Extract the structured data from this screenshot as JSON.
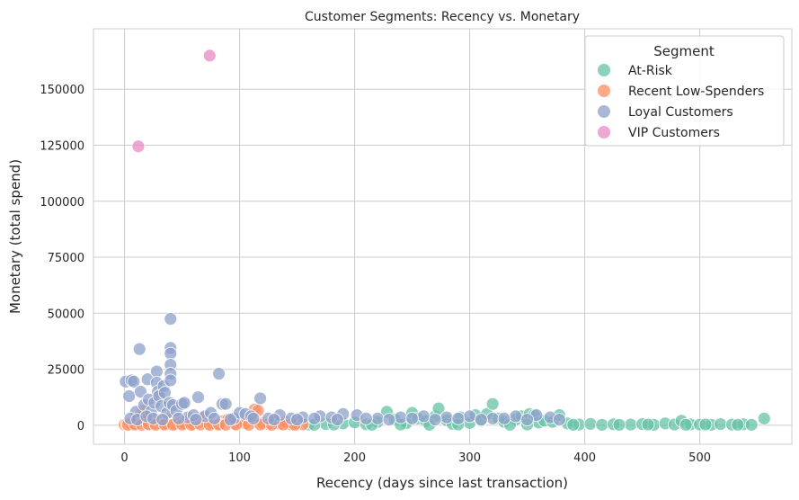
{
  "chart_data": {
    "type": "scatter",
    "title": "Customer Segments: Recency vs. Monetary",
    "xlabel": "Recency (days since last transaction)",
    "ylabel": "Monetary (total spend)",
    "xlim": [
      -27,
      580
    ],
    "ylim": [
      -8500,
      177000
    ],
    "xticks": [
      0,
      100,
      200,
      300,
      400,
      500
    ],
    "yticks": [
      0,
      25000,
      50000,
      75000,
      100000,
      125000,
      150000
    ],
    "grid": true,
    "legend": {
      "title": "Segment",
      "placement": "top-right",
      "entries": [
        "At-Risk",
        "Recent Low-Spenders",
        "Loyal Customers",
        "VIP Customers"
      ]
    },
    "series": [
      {
        "name": "At-Risk",
        "color": "#66c2a5",
        "points": [
          [
            160,
            300
          ],
          [
            175,
            500
          ],
          [
            190,
            800
          ],
          [
            200,
            1200
          ],
          [
            210,
            400
          ],
          [
            220,
            1500
          ],
          [
            228,
            6000
          ],
          [
            235,
            2500
          ],
          [
            245,
            900
          ],
          [
            250,
            5500
          ],
          [
            255,
            3000
          ],
          [
            262,
            1800
          ],
          [
            270,
            4000
          ],
          [
            273,
            7500
          ],
          [
            280,
            2200
          ],
          [
            285,
            600
          ],
          [
            292,
            3500
          ],
          [
            300,
            1000
          ],
          [
            305,
            4500
          ],
          [
            310,
            2000
          ],
          [
            315,
            5000
          ],
          [
            320,
            9500
          ],
          [
            325,
            3000
          ],
          [
            330,
            1500
          ],
          [
            340,
            2500
          ],
          [
            345,
            4000
          ],
          [
            352,
            5000
          ],
          [
            356,
            4500
          ],
          [
            360,
            1200
          ],
          [
            365,
            2000
          ],
          [
            372,
            1500
          ],
          [
            378,
            4500
          ],
          [
            385,
            800
          ],
          [
            395,
            300
          ],
          [
            405,
            600
          ],
          [
            415,
            200
          ],
          [
            425,
            400
          ],
          [
            440,
            300
          ],
          [
            450,
            500
          ],
          [
            460,
            200
          ],
          [
            470,
            800
          ],
          [
            478,
            300
          ],
          [
            484,
            2000
          ],
          [
            492,
            400
          ],
          [
            500,
            300
          ],
          [
            510,
            200
          ],
          [
            518,
            500
          ],
          [
            528,
            300
          ],
          [
            538,
            400
          ],
          [
            545,
            200
          ],
          [
            556,
            3000
          ],
          [
            165,
            200
          ],
          [
            182,
            300
          ],
          [
            215,
            200
          ],
          [
            240,
            300
          ],
          [
            265,
            200
          ],
          [
            290,
            300
          ],
          [
            335,
            200
          ],
          [
            350,
            300
          ],
          [
            390,
            200
          ],
          [
            430,
            200
          ],
          [
            455,
            300
          ],
          [
            488,
            200
          ],
          [
            505,
            300
          ],
          [
            533,
            200
          ]
        ]
      },
      {
        "name": "Recent Low-Spenders",
        "color": "#fc8d62",
        "points": [
          [
            0,
            300
          ],
          [
            2,
            500
          ],
          [
            4,
            900
          ],
          [
            6,
            300
          ],
          [
            8,
            1500
          ],
          [
            10,
            600
          ],
          [
            12,
            2500
          ],
          [
            14,
            4500
          ],
          [
            16,
            6500
          ],
          [
            18,
            1200
          ],
          [
            20,
            3000
          ],
          [
            22,
            400
          ],
          [
            25,
            1800
          ],
          [
            28,
            700
          ],
          [
            30,
            2200
          ],
          [
            33,
            300
          ],
          [
            36,
            1000
          ],
          [
            40,
            2800
          ],
          [
            44,
            500
          ],
          [
            48,
            1500
          ],
          [
            52,
            700
          ],
          [
            56,
            2000
          ],
          [
            60,
            400
          ],
          [
            64,
            1200
          ],
          [
            68,
            3500
          ],
          [
            72,
            600
          ],
          [
            76,
            1000
          ],
          [
            80,
            300
          ],
          [
            85,
            1800
          ],
          [
            90,
            2500
          ],
          [
            95,
            500
          ],
          [
            100,
            1500
          ],
          [
            105,
            800
          ],
          [
            110,
            3000
          ],
          [
            113,
            7000
          ],
          [
            116,
            6500
          ],
          [
            120,
            1000
          ],
          [
            125,
            500
          ],
          [
            130,
            2000
          ],
          [
            135,
            600
          ],
          [
            140,
            1500
          ],
          [
            145,
            300
          ],
          [
            150,
            800
          ],
          [
            155,
            400
          ],
          [
            3,
            200
          ],
          [
            9,
            300
          ],
          [
            15,
            200
          ],
          [
            21,
            400
          ],
          [
            27,
            200
          ],
          [
            35,
            300
          ],
          [
            42,
            200
          ],
          [
            50,
            300
          ],
          [
            58,
            200
          ],
          [
            66,
            300
          ],
          [
            74,
            200
          ],
          [
            82,
            300
          ],
          [
            88,
            200
          ],
          [
            97,
            300
          ],
          [
            108,
            200
          ],
          [
            118,
            300
          ],
          [
            128,
            200
          ],
          [
            138,
            300
          ],
          [
            148,
            200
          ]
        ]
      },
      {
        "name": "Loyal Customers",
        "color": "#8da0cb",
        "points": [
          [
            1,
            19500
          ],
          [
            4,
            13000
          ],
          [
            6,
            20000
          ],
          [
            8,
            19500
          ],
          [
            10,
            6000
          ],
          [
            13,
            34000
          ],
          [
            14,
            15000
          ],
          [
            17,
            9000
          ],
          [
            20,
            20500
          ],
          [
            21,
            11500
          ],
          [
            23,
            6000
          ],
          [
            26,
            10000
          ],
          [
            28,
            24000
          ],
          [
            28,
            19000
          ],
          [
            29,
            15000
          ],
          [
            30,
            13000
          ],
          [
            32,
            8500
          ],
          [
            34,
            17500
          ],
          [
            35,
            14500
          ],
          [
            37,
            5500
          ],
          [
            39,
            10000
          ],
          [
            40,
            47500
          ],
          [
            40,
            34500
          ],
          [
            40,
            32000
          ],
          [
            40,
            27000
          ],
          [
            40,
            23000
          ],
          [
            40,
            20000
          ],
          [
            42,
            9000
          ],
          [
            45,
            6500
          ],
          [
            50,
            9500
          ],
          [
            52,
            10000
          ],
          [
            55,
            3500
          ],
          [
            60,
            4500
          ],
          [
            64,
            12500
          ],
          [
            70,
            4000
          ],
          [
            75,
            5500
          ],
          [
            82,
            23000
          ],
          [
            85,
            9500
          ],
          [
            88,
            9500
          ],
          [
            95,
            3000
          ],
          [
            100,
            5500
          ],
          [
            105,
            5000
          ],
          [
            110,
            4000
          ],
          [
            118,
            12000
          ],
          [
            125,
            3000
          ],
          [
            135,
            4500
          ],
          [
            145,
            3000
          ],
          [
            155,
            3500
          ],
          [
            170,
            4000
          ],
          [
            180,
            3500
          ],
          [
            190,
            5000
          ],
          [
            202,
            4500
          ],
          [
            220,
            3000
          ],
          [
            240,
            3500
          ],
          [
            260,
            4000
          ],
          [
            280,
            3500
          ],
          [
            300,
            4000
          ],
          [
            320,
            3000
          ],
          [
            340,
            4000
          ],
          [
            358,
            4500
          ],
          [
            370,
            3500
          ],
          [
            378,
            2500
          ],
          [
            5,
            3000
          ],
          [
            11,
            2500
          ],
          [
            19,
            4000
          ],
          [
            25,
            3000
          ],
          [
            33,
            2500
          ],
          [
            47,
            3000
          ],
          [
            62,
            2500
          ],
          [
            78,
            3000
          ],
          [
            92,
            2500
          ],
          [
            112,
            3000
          ],
          [
            130,
            2500
          ],
          [
            150,
            2500
          ],
          [
            165,
            3000
          ],
          [
            185,
            2500
          ],
          [
            210,
            3000
          ],
          [
            230,
            2500
          ],
          [
            250,
            3000
          ],
          [
            270,
            2500
          ],
          [
            290,
            3000
          ],
          [
            310,
            2500
          ],
          [
            330,
            3000
          ],
          [
            350,
            2500
          ]
        ]
      },
      {
        "name": "VIP Customers",
        "color": "#e78ac3",
        "points": [
          [
            12,
            124500
          ],
          [
            74,
            165000
          ]
        ]
      }
    ]
  }
}
